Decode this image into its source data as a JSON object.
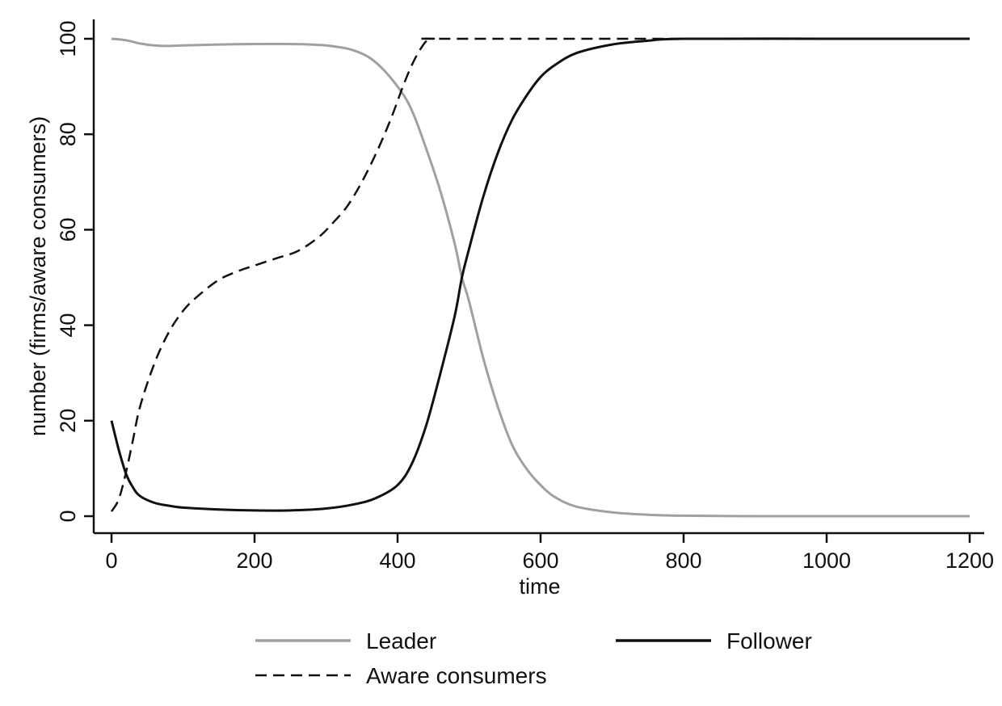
{
  "chart_data": {
    "type": "line",
    "title": "",
    "xlabel": "time",
    "ylabel": "number (firms/aware consumers)",
    "xlim": [
      0,
      1200
    ],
    "ylim": [
      0,
      100
    ],
    "xticks": [
      "0",
      "200",
      "400",
      "600",
      "800",
      "1000",
      "1200"
    ],
    "yticks": [
      "0",
      "20",
      "40",
      "60",
      "80",
      "100"
    ],
    "grid": false,
    "legend_position": "bottom",
    "series": [
      {
        "name": "Leader",
        "color": "#a0a0a0",
        "style": "solid",
        "points": [
          [
            0,
            100
          ],
          [
            20,
            99.7
          ],
          [
            40,
            99
          ],
          [
            60,
            98.6
          ],
          [
            80,
            98.5
          ],
          [
            100,
            98.6
          ],
          [
            150,
            98.8
          ],
          [
            200,
            98.9
          ],
          [
            250,
            98.9
          ],
          [
            300,
            98.6
          ],
          [
            340,
            97.5
          ],
          [
            370,
            95
          ],
          [
            400,
            90
          ],
          [
            420,
            85
          ],
          [
            440,
            77
          ],
          [
            460,
            68
          ],
          [
            480,
            57
          ],
          [
            490,
            50
          ],
          [
            500,
            45
          ],
          [
            520,
            33
          ],
          [
            540,
            23
          ],
          [
            560,
            15
          ],
          [
            580,
            10
          ],
          [
            600,
            6.5
          ],
          [
            620,
            4
          ],
          [
            650,
            2
          ],
          [
            700,
            0.8
          ],
          [
            750,
            0.3
          ],
          [
            800,
            0.1
          ],
          [
            900,
            0
          ],
          [
            1000,
            0
          ],
          [
            1200,
            0
          ]
        ]
      },
      {
        "name": "Follower",
        "color": "#111111",
        "style": "solid",
        "points": [
          [
            0,
            20
          ],
          [
            10,
            14
          ],
          [
            20,
            9
          ],
          [
            30,
            6
          ],
          [
            40,
            4.2
          ],
          [
            60,
            2.8
          ],
          [
            80,
            2.2
          ],
          [
            100,
            1.8
          ],
          [
            150,
            1.4
          ],
          [
            200,
            1.2
          ],
          [
            250,
            1.2
          ],
          [
            300,
            1.6
          ],
          [
            340,
            2.5
          ],
          [
            370,
            3.8
          ],
          [
            400,
            6.5
          ],
          [
            420,
            11
          ],
          [
            440,
            19
          ],
          [
            460,
            30
          ],
          [
            480,
            42
          ],
          [
            490,
            50
          ],
          [
            500,
            56
          ],
          [
            520,
            67
          ],
          [
            540,
            76
          ],
          [
            560,
            83
          ],
          [
            580,
            88
          ],
          [
            600,
            92
          ],
          [
            620,
            94.5
          ],
          [
            650,
            97
          ],
          [
            700,
            98.8
          ],
          [
            750,
            99.6
          ],
          [
            800,
            100
          ],
          [
            1000,
            100
          ],
          [
            1200,
            100
          ]
        ]
      },
      {
        "name": "Aware consumers",
        "color": "#111111",
        "style": "dashed",
        "points": [
          [
            0,
            1
          ],
          [
            10,
            3.5
          ],
          [
            20,
            9
          ],
          [
            30,
            16
          ],
          [
            40,
            23
          ],
          [
            60,
            32
          ],
          [
            80,
            38.5
          ],
          [
            100,
            43
          ],
          [
            120,
            46
          ],
          [
            150,
            49.5
          ],
          [
            180,
            51.5
          ],
          [
            200,
            52.5
          ],
          [
            230,
            54
          ],
          [
            260,
            55.5
          ],
          [
            290,
            58.5
          ],
          [
            310,
            61.5
          ],
          [
            330,
            65
          ],
          [
            350,
            70
          ],
          [
            370,
            76
          ],
          [
            390,
            83
          ],
          [
            410,
            91
          ],
          [
            425,
            96
          ],
          [
            440,
            99.5
          ],
          [
            450,
            100
          ],
          [
            500,
            100
          ],
          [
            1200,
            100
          ]
        ]
      }
    ]
  }
}
